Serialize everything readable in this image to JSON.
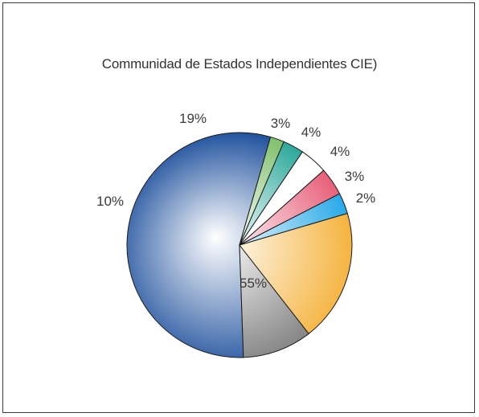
{
  "chart_data": {
    "type": "pie",
    "title": "Communidad de Estados Independientes CIE)",
    "slices": [
      {
        "value": 55,
        "label": "55%",
        "color": "#1d4f9c"
      },
      {
        "value": 10,
        "label": "10%",
        "color": "#7a7a7a"
      },
      {
        "value": 19,
        "label": "19%",
        "color": "#f5b23c"
      },
      {
        "value": 3,
        "label": "3%",
        "color": "#27a9e8"
      },
      {
        "value": 4,
        "label": "4%",
        "color": "#e8607a"
      },
      {
        "value": 4,
        "label": "4%",
        "color": "#ffffff"
      },
      {
        "value": 3,
        "label": "3%",
        "color": "#2ca89a"
      },
      {
        "value": 2,
        "label": "2%",
        "color": "#7fbf6a"
      }
    ],
    "start_angle_deg": 74,
    "direction": "counterclockwise"
  }
}
